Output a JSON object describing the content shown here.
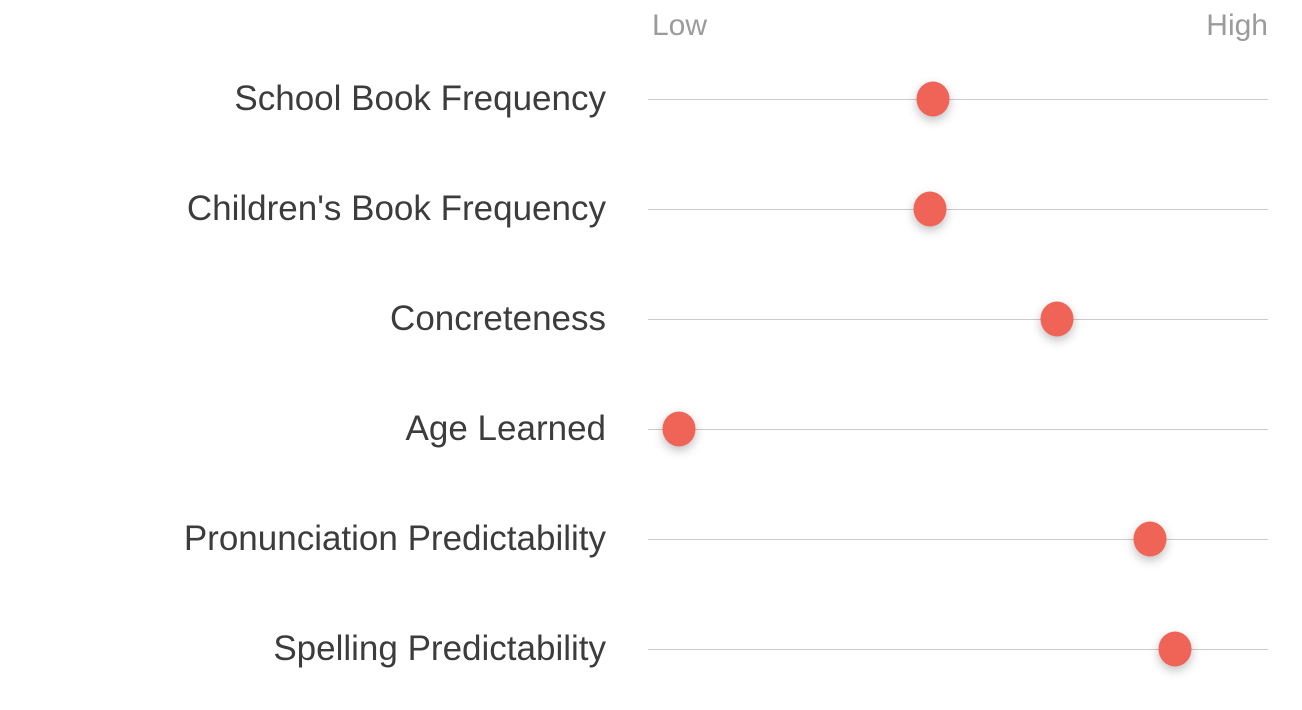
{
  "chart_data": {
    "type": "scatter",
    "title": "",
    "axis": {
      "min_label": "Low",
      "max_label": "High",
      "range": [
        0,
        1
      ]
    },
    "categories": [
      "School Book Frequency",
      "Children's Book Frequency",
      "Concreteness",
      "Age Learned",
      "Pronunciation Predictability",
      "Spelling Predictability"
    ],
    "values": [
      0.46,
      0.455,
      0.66,
      0.05,
      0.81,
      0.85
    ],
    "layout": {
      "orientation": "horizontal-dot-plot",
      "row_lines": true,
      "legend": "none"
    },
    "colors": {
      "dot": "#ef6456",
      "track_line": "#cbcbcb",
      "row_label_text": "#3c3c3c",
      "axis_label_text": "#9b9b9b",
      "background": "#ffffff"
    }
  }
}
